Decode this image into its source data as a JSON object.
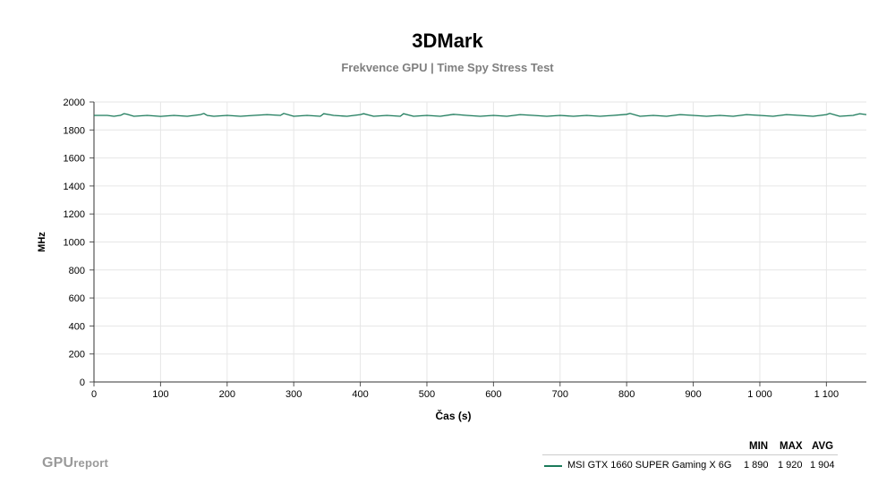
{
  "header": {
    "title": "3DMark",
    "subtitle": "Frekvence GPU | Time Spy Stress Test"
  },
  "logo": {
    "main": "GPU",
    "small": "report"
  },
  "legend": {
    "columns": [
      "MIN",
      "MAX",
      "AVG"
    ],
    "rows": [
      {
        "name": "MSI GTX 1660 SUPER Gaming X 6G",
        "min": "1 890",
        "max": "1 920",
        "avg": "1 904",
        "color": "#1b7a5a"
      }
    ]
  },
  "chart_data": {
    "type": "line",
    "title": "3DMark",
    "subtitle": "Frekvence GPU | Time Spy Stress Test",
    "xlabel": "Čas (s)",
    "ylabel": "MHz",
    "xlim": [
      0,
      1160
    ],
    "ylim": [
      0,
      2000
    ],
    "x_ticks": [
      0,
      100,
      200,
      300,
      400,
      500,
      600,
      700,
      800,
      900,
      1000,
      1100
    ],
    "x_tick_labels": [
      "0",
      "100",
      "200",
      "300",
      "400",
      "500",
      "600",
      "700",
      "800",
      "900",
      "1 000",
      "1 100"
    ],
    "y_ticks": [
      0,
      200,
      400,
      600,
      800,
      1000,
      1200,
      1400,
      1600,
      1800,
      2000
    ],
    "grid": true,
    "legend_position": "bottom-right",
    "series": [
      {
        "name": "MSI GTX 1660 SUPER Gaming X 6G",
        "color": "#1b7a5a",
        "x": [
          0,
          20,
          30,
          40,
          45,
          50,
          60,
          80,
          100,
          120,
          140,
          160,
          165,
          170,
          180,
          200,
          220,
          240,
          260,
          280,
          285,
          300,
          320,
          340,
          345,
          360,
          380,
          400,
          405,
          420,
          440,
          460,
          465,
          480,
          500,
          520,
          540,
          560,
          580,
          600,
          620,
          640,
          660,
          680,
          700,
          720,
          740,
          760,
          780,
          800,
          805,
          820,
          840,
          860,
          880,
          900,
          920,
          940,
          960,
          980,
          1000,
          1020,
          1040,
          1060,
          1080,
          1100,
          1105,
          1120,
          1140,
          1150,
          1160
        ],
        "y": [
          1904,
          1904,
          1898,
          1905,
          1917,
          1912,
          1898,
          1904,
          1897,
          1904,
          1898,
          1910,
          1918,
          1904,
          1898,
          1904,
          1898,
          1904,
          1910,
          1904,
          1918,
          1898,
          1904,
          1898,
          1916,
          1904,
          1898,
          1910,
          1916,
          1898,
          1904,
          1898,
          1916,
          1898,
          1904,
          1898,
          1912,
          1904,
          1898,
          1904,
          1898,
          1910,
          1904,
          1898,
          1904,
          1898,
          1904,
          1898,
          1904,
          1912,
          1918,
          1898,
          1904,
          1898,
          1910,
          1904,
          1898,
          1904,
          1898,
          1910,
          1904,
          1898,
          1910,
          1904,
          1898,
          1910,
          1918,
          1898,
          1904,
          1916,
          1910
        ]
      }
    ]
  }
}
